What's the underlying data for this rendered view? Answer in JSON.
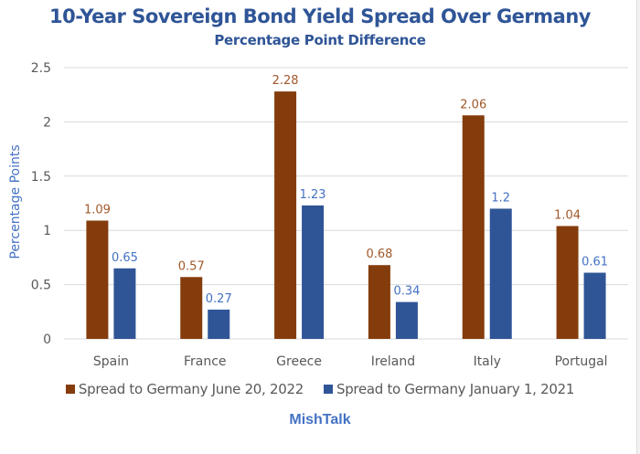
{
  "chart_data": {
    "type": "bar",
    "title": "10-Year Sovereign Bond Yield Spread Over Germany",
    "subtitle": "Percentage Point Difference",
    "xlabel": "",
    "ylabel": "Percentage Points",
    "ylim": [
      0,
      2.5
    ],
    "yticks": [
      0,
      0.5,
      1,
      1.5,
      2,
      2.5
    ],
    "ytick_labels": [
      "0",
      "0.5",
      "1",
      "1.5",
      "2",
      "2.5"
    ],
    "grid": true,
    "legend_position": "bottom",
    "categories": [
      "Spain",
      "France",
      "Greece",
      "Ireland",
      "Italy",
      "Portugal"
    ],
    "series": [
      {
        "name": "Spread to Germany June 20, 2022",
        "color": "#843c0c",
        "label_color": "#a0582a",
        "values": [
          1.09,
          0.57,
          2.28,
          0.68,
          2.06,
          1.04
        ],
        "labels": [
          "1.09",
          "0.57",
          "2.28",
          "0.68",
          "2.06",
          "1.04"
        ]
      },
      {
        "name": "Spread to Germany January 1, 2021",
        "color": "#2f5597",
        "label_color": "#4472c4",
        "values": [
          0.65,
          0.27,
          1.23,
          0.34,
          1.2,
          0.61
        ],
        "labels": [
          "0.65",
          "0.27",
          "1.23",
          "0.34",
          "1.2",
          "0.61"
        ]
      }
    ],
    "footer": "MishTalk"
  }
}
